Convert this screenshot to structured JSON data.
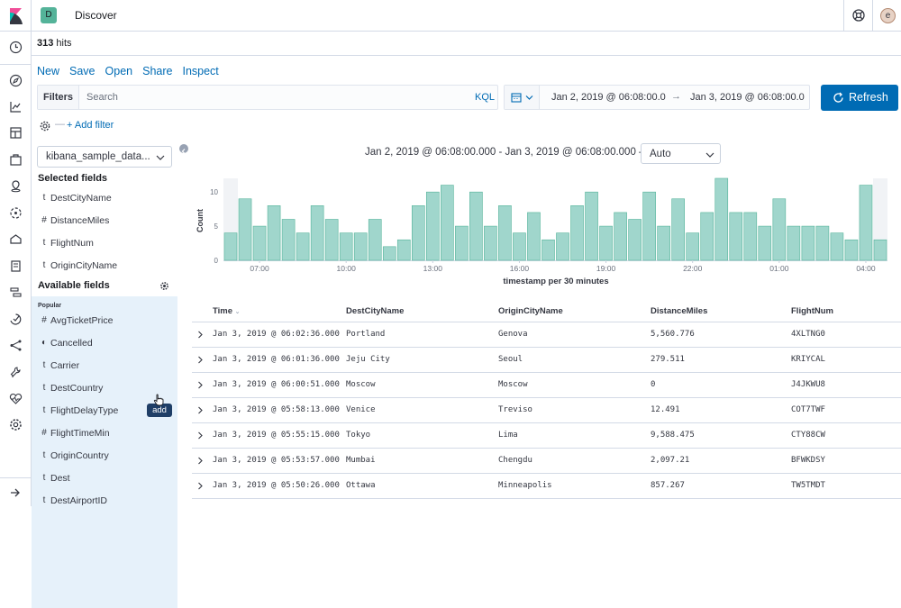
{
  "header": {
    "app_badge": "D",
    "title": "Discover",
    "avatar_letter": "e"
  },
  "hits": {
    "count": "313",
    "label": "hits"
  },
  "menu": [
    "New",
    "Save",
    "Open",
    "Share",
    "Inspect"
  ],
  "search": {
    "filters_label": "Filters",
    "placeholder": "Search",
    "kql": "KQL"
  },
  "time": {
    "start": "Jan 2, 2019 @ 06:08:00.0",
    "arrow": "→",
    "end": "Jan 3, 2019 @ 06:08:00.0",
    "refresh": "Refresh"
  },
  "filter_bar": {
    "dash": "—",
    "add_filter": "+ Add filter"
  },
  "sidebar": {
    "index_pattern": "kibana_sample_data...",
    "selected_title": "Selected fields",
    "selected_fields": [
      {
        "type": "t",
        "name": "DestCityName"
      },
      {
        "type": "#",
        "name": "DistanceMiles"
      },
      {
        "type": "t",
        "name": "FlightNum"
      },
      {
        "type": "t",
        "name": "OriginCityName"
      }
    ],
    "available_title": "Available fields",
    "popular_label": "Popular",
    "available_fields": [
      {
        "type": "#",
        "name": "AvgTicketPrice"
      },
      {
        "type": "◐",
        "name": "Cancelled"
      },
      {
        "type": "t",
        "name": "Carrier"
      },
      {
        "type": "t",
        "name": "DestCountry"
      },
      {
        "type": "t",
        "name": "FlightDelayType"
      },
      {
        "type": "#",
        "name": "FlightTimeMin"
      },
      {
        "type": "t",
        "name": "OriginCountry"
      },
      {
        "type": "t",
        "name": "Dest"
      },
      {
        "type": "t",
        "name": "DestAirportID"
      }
    ],
    "add_tooltip": "add"
  },
  "chart_header": {
    "range": "Jan 2, 2019 @ 06:08:00.000 - Jan 3, 2019 @ 06:08:00.000 —",
    "interval": "Auto"
  },
  "colors": {
    "accent": "#006bb4",
    "bar": "#a0d6cc",
    "bar_stroke": "#54b399"
  },
  "chart_data": {
    "type": "bar",
    "xlabel": "timestamp per 30 minutes",
    "ylabel": "Count",
    "ylim": [
      0,
      12
    ],
    "yticks": [
      0,
      5,
      10
    ],
    "xtick_labels": [
      "07:00",
      "10:00",
      "13:00",
      "16:00",
      "19:00",
      "22:00",
      "01:00",
      "04:00"
    ],
    "xtick_positions": [
      2,
      8,
      14,
      20,
      26,
      32,
      38,
      44
    ],
    "values": [
      4,
      9,
      5,
      8,
      6,
      4,
      8,
      6,
      4,
      4,
      6,
      2,
      3,
      8,
      10,
      11,
      5,
      10,
      5,
      8,
      4,
      7,
      3,
      4,
      8,
      10,
      5,
      7,
      6,
      10,
      5,
      9,
      4,
      7,
      12,
      7,
      7,
      5,
      9,
      5,
      5,
      5,
      4,
      3,
      11,
      3
    ]
  },
  "table": {
    "columns": [
      "Time",
      "DestCityName",
      "OriginCityName",
      "DistanceMiles",
      "FlightNum"
    ],
    "rows": [
      [
        "Jan 3, 2019 @ 06:02:36.000",
        "Portland",
        "Genova",
        "5,560.776",
        "4XLTNG0"
      ],
      [
        "Jan 3, 2019 @ 06:01:36.000",
        "Jeju City",
        "Seoul",
        "279.511",
        "KRIYCAL"
      ],
      [
        "Jan 3, 2019 @ 06:00:51.000",
        "Moscow",
        "Moscow",
        "0",
        "J4JKWU8"
      ],
      [
        "Jan 3, 2019 @ 05:58:13.000",
        "Venice",
        "Treviso",
        "12.491",
        "COT7TWF"
      ],
      [
        "Jan 3, 2019 @ 05:55:15.000",
        "Tokyo",
        "Lima",
        "9,588.475",
        "CTY88CW"
      ],
      [
        "Jan 3, 2019 @ 05:53:57.000",
        "Mumbai",
        "Chengdu",
        "2,097.21",
        "BFWKDSY"
      ],
      [
        "Jan 3, 2019 @ 05:50:26.000",
        "Ottawa",
        "Minneapolis",
        "857.267",
        "TW5TMDT"
      ]
    ]
  }
}
